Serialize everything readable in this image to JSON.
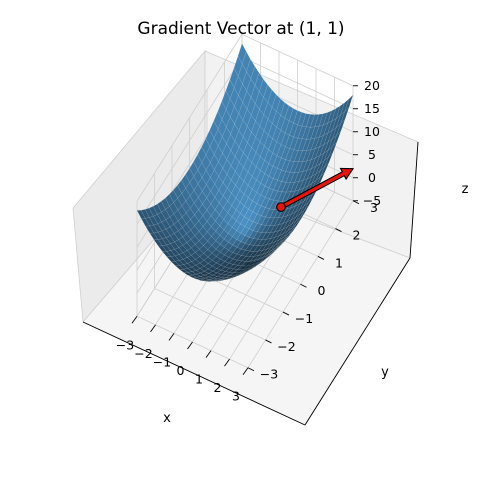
{
  "chart_data": {
    "type": "surface3d",
    "title": "Gradient Vector at (1, 1)",
    "function": "z = x^2 + y^2",
    "xlabel": "x",
    "ylabel": "y",
    "zlabel": "z",
    "xlim": [
      -3,
      3
    ],
    "ylim": [
      -3,
      3
    ],
    "zlim": [
      -5,
      20
    ],
    "x_ticks": [
      "−3",
      "−2",
      "−1",
      "0",
      "1",
      "2",
      "3"
    ],
    "y_ticks": [
      "−3",
      "−2",
      "−1",
      "0",
      "1",
      "2",
      "3"
    ],
    "z_ticks": [
      "−5",
      "0",
      "5",
      "10",
      "15",
      "20"
    ],
    "grid": true,
    "surface_color": "#4a90c4",
    "gradient_point": {
      "x": 1,
      "y": 1,
      "z": 2
    },
    "gradient_vector": {
      "dx": 2,
      "dy": 2
    },
    "arrow_color": "#e8140c"
  }
}
